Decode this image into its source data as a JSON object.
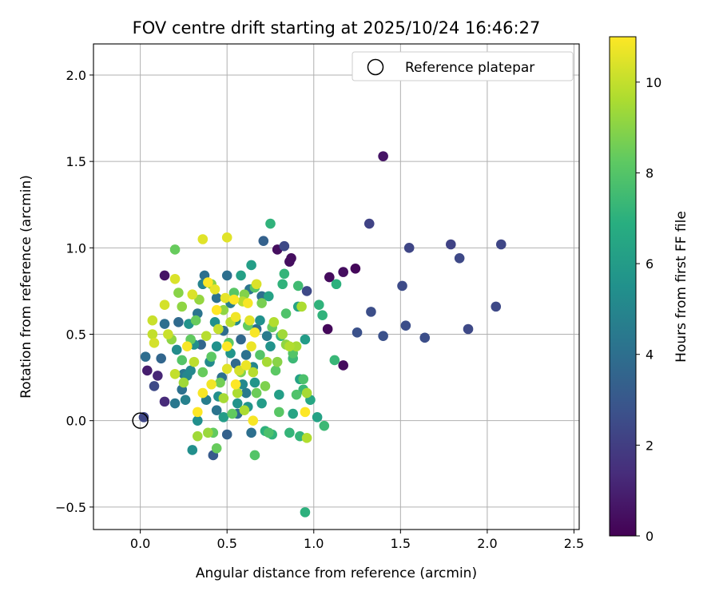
{
  "chart_data": {
    "type": "scatter",
    "title": "FOV centre drift starting at 2025/10/24 16:46:27",
    "xlabel": "Angular distance from reference (arcmin)",
    "ylabel": "Rotation from reference (arcmin)",
    "xlim": [
      -0.27,
      2.53
    ],
    "ylim": [
      -0.63,
      2.18
    ],
    "xticks": [
      0.0,
      0.5,
      1.0,
      1.5,
      2.0,
      2.5
    ],
    "xtick_labels": [
      "0.0",
      "0.5",
      "1.0",
      "1.5",
      "2.0",
      "2.5"
    ],
    "yticks": [
      -0.5,
      0.0,
      0.5,
      1.0,
      1.5,
      2.0
    ],
    "ytick_labels": [
      "−0.5",
      "0.0",
      "0.5",
      "1.0",
      "1.5",
      "2.0"
    ],
    "grid": true,
    "legend": {
      "label": "Reference platepar",
      "location": "top-right"
    },
    "reference_point": {
      "x": 0.0,
      "y": 0.0
    },
    "colorbar": {
      "label": "Hours from first FF file",
      "range": [
        0,
        11
      ],
      "ticks": [
        0,
        2,
        4,
        6,
        8,
        10
      ],
      "tick_labels": [
        "0",
        "2",
        "4",
        "6",
        "8",
        "10"
      ],
      "colormap": "viridis"
    },
    "points": [
      [
        1.4,
        1.53,
        0.6
      ],
      [
        0.86,
        0.92,
        0.4
      ],
      [
        0.87,
        0.94,
        0.4
      ],
      [
        1.09,
        0.83,
        0.3
      ],
      [
        1.17,
        0.86,
        0.4
      ],
      [
        1.24,
        0.88,
        0.2
      ],
      [
        1.08,
        0.53,
        0.2
      ],
      [
        1.17,
        0.32,
        0.3
      ],
      [
        0.79,
        0.99,
        0.4
      ],
      [
        0.14,
        0.84,
        0.6
      ],
      [
        0.04,
        0.29,
        0.9
      ],
      [
        0.1,
        0.26,
        1.2
      ],
      [
        0.14,
        0.11,
        1.3
      ],
      [
        0.08,
        0.2,
        2.4
      ],
      [
        0.02,
        0.02,
        2.3
      ],
      [
        1.32,
        1.14,
        2.2
      ],
      [
        1.55,
        1.0,
        2.3
      ],
      [
        1.79,
        1.02,
        2.2
      ],
      [
        1.84,
        0.94,
        2.4
      ],
      [
        2.08,
        1.02,
        2.3
      ],
      [
        1.51,
        0.78,
        2.5
      ],
      [
        1.33,
        0.63,
        2.6
      ],
      [
        1.53,
        0.55,
        2.6
      ],
      [
        1.64,
        0.48,
        2.6
      ],
      [
        1.89,
        0.53,
        2.4
      ],
      [
        2.05,
        0.66,
        2.4
      ],
      [
        1.4,
        0.49,
        2.7
      ],
      [
        1.25,
        0.51,
        2.7
      ],
      [
        0.96,
        0.75,
        2.4
      ],
      [
        0.83,
        1.01,
        2.4
      ],
      [
        0.71,
        1.04,
        3.4
      ],
      [
        0.3,
        -0.17,
        5.4
      ],
      [
        0.42,
        -0.2,
        3.1
      ],
      [
        0.5,
        -0.08,
        3.4
      ],
      [
        0.64,
        -0.07,
        4.0
      ],
      [
        0.56,
        0.04,
        3.9
      ],
      [
        0.38,
        0.12,
        4.6
      ],
      [
        0.29,
        0.29,
        5.1
      ],
      [
        0.25,
        0.27,
        4.4
      ],
      [
        0.22,
        0.57,
        3.8
      ],
      [
        0.14,
        0.56,
        4.0
      ],
      [
        0.33,
        0.62,
        4.2
      ],
      [
        0.48,
        0.52,
        3.9
      ],
      [
        0.61,
        0.38,
        4.1
      ],
      [
        0.58,
        0.47,
        3.7
      ],
      [
        0.67,
        0.53,
        4.0
      ],
      [
        0.73,
        0.49,
        4.5
      ],
      [
        0.55,
        0.33,
        3.8
      ],
      [
        0.35,
        0.44,
        3.6
      ],
      [
        0.26,
        0.12,
        4.8
      ],
      [
        0.44,
        0.06,
        4.2
      ],
      [
        0.61,
        0.16,
        4.5
      ],
      [
        0.2,
        0.1,
        4.4
      ],
      [
        0.24,
        0.18,
        4.1
      ],
      [
        0.12,
        0.36,
        3.6
      ],
      [
        0.03,
        0.37,
        3.9
      ],
      [
        0.47,
        0.25,
        4.0
      ],
      [
        0.52,
        0.68,
        4.6
      ],
      [
        0.36,
        0.79,
        4.9
      ],
      [
        0.44,
        0.71,
        4.1
      ],
      [
        0.63,
        0.76,
        4.3
      ],
      [
        0.7,
        0.72,
        4.0
      ],
      [
        0.5,
        0.84,
        4.0
      ],
      [
        0.37,
        0.84,
        4.0
      ],
      [
        0.27,
        0.26,
        5.0
      ],
      [
        0.4,
        0.34,
        5.2
      ],
      [
        0.45,
        0.14,
        5.4
      ],
      [
        0.33,
        0.0,
        5.4
      ],
      [
        0.59,
        0.21,
        5.1
      ],
      [
        0.65,
        0.31,
        5.0
      ],
      [
        0.75,
        0.43,
        5.6
      ],
      [
        0.69,
        0.58,
        5.5
      ],
      [
        0.55,
        0.58,
        5.2
      ],
      [
        0.43,
        0.57,
        5.5
      ],
      [
        0.31,
        0.44,
        5.4
      ],
      [
        0.21,
        0.41,
        5.3
      ],
      [
        0.28,
        0.56,
        5.6
      ],
      [
        0.44,
        0.43,
        5.5
      ],
      [
        0.52,
        0.39,
        5.7
      ],
      [
        0.66,
        0.22,
        5.7
      ],
      [
        0.56,
        0.1,
        5.6
      ],
      [
        0.7,
        0.1,
        6.0
      ],
      [
        0.62,
        0.08,
        5.7
      ],
      [
        0.48,
        0.02,
        6.0
      ],
      [
        0.64,
        0.9,
        6.1
      ],
      [
        0.74,
        0.72,
        6.3
      ],
      [
        0.58,
        0.84,
        6.2
      ],
      [
        0.92,
        0.24,
        6.3
      ],
      [
        0.8,
        0.15,
        6.1
      ],
      [
        0.88,
        0.04,
        6.4
      ],
      [
        1.02,
        0.02,
        6.3
      ],
      [
        0.98,
        0.12,
        6.5
      ],
      [
        0.95,
        0.47,
        6.0
      ],
      [
        0.91,
        0.66,
        6.4
      ],
      [
        0.75,
        1.14,
        7.1
      ],
      [
        0.95,
        -0.53,
        7.0
      ],
      [
        0.72,
        -0.06,
        7.0
      ],
      [
        0.76,
        -0.08,
        7.1
      ],
      [
        0.86,
        -0.07,
        7.2
      ],
      [
        0.92,
        -0.09,
        7.2
      ],
      [
        0.94,
        0.18,
        7.3
      ],
      [
        0.88,
        0.36,
        7.4
      ],
      [
        0.81,
        0.49,
        7.2
      ],
      [
        0.83,
        0.85,
        7.2
      ],
      [
        0.82,
        0.79,
        7.1
      ],
      [
        1.03,
        0.67,
        7.1
      ],
      [
        1.05,
        0.61,
        7.1
      ],
      [
        1.13,
        0.79,
        7.0
      ],
      [
        1.12,
        0.35,
        7.3
      ],
      [
        1.06,
        -0.03,
        7.4
      ],
      [
        0.91,
        0.78,
        7.5
      ],
      [
        0.2,
        0.99,
        8.4
      ],
      [
        0.42,
        -0.07,
        8.3
      ],
      [
        0.44,
        -0.16,
        8.4
      ],
      [
        0.53,
        0.04,
        8.3
      ],
      [
        0.66,
        -0.2,
        8.0
      ],
      [
        0.74,
        -0.07,
        7.8
      ],
      [
        0.8,
        0.05,
        8.1
      ],
      [
        0.9,
        0.15,
        7.9
      ],
      [
        0.94,
        0.24,
        7.8
      ],
      [
        0.78,
        0.29,
        8.2
      ],
      [
        0.69,
        0.38,
        8.0
      ],
      [
        0.62,
        0.55,
        8.3
      ],
      [
        0.54,
        0.74,
        8.1
      ],
      [
        0.66,
        0.77,
        8.0
      ],
      [
        0.84,
        0.62,
        7.9
      ],
      [
        0.88,
        0.39,
        8.0
      ],
      [
        0.76,
        0.54,
        8.4
      ],
      [
        0.51,
        0.45,
        8.2
      ],
      [
        0.36,
        0.28,
        8.4
      ],
      [
        0.24,
        0.35,
        8.0
      ],
      [
        0.29,
        0.47,
        8.3
      ],
      [
        0.32,
        0.58,
        8.4
      ],
      [
        0.41,
        0.37,
        8.2
      ],
      [
        0.46,
        0.22,
        8.6
      ],
      [
        0.58,
        0.28,
        8.8
      ],
      [
        0.67,
        0.16,
        8.5
      ],
      [
        0.72,
        0.2,
        8.8
      ],
      [
        0.79,
        0.34,
        9.0
      ],
      [
        0.84,
        0.44,
        9.1
      ],
      [
        0.7,
        0.68,
        8.7
      ],
      [
        0.6,
        0.73,
        8.9
      ],
      [
        0.48,
        0.64,
        9.1
      ],
      [
        0.41,
        0.79,
        9.0
      ],
      [
        0.34,
        0.7,
        9.2
      ],
      [
        0.24,
        0.66,
        9.1
      ],
      [
        0.22,
        0.74,
        9.0
      ],
      [
        0.18,
        0.47,
        9.1
      ],
      [
        0.25,
        0.22,
        9.4
      ],
      [
        0.33,
        -0.09,
        9.4
      ],
      [
        0.39,
        -0.07,
        9.3
      ],
      [
        0.48,
        0.13,
        9.5
      ],
      [
        0.56,
        0.16,
        9.6
      ],
      [
        0.6,
        0.06,
        9.6
      ],
      [
        0.65,
        0.28,
        9.8
      ],
      [
        0.73,
        0.34,
        9.5
      ],
      [
        0.77,
        0.57,
        9.7
      ],
      [
        0.82,
        0.5,
        9.4
      ],
      [
        0.86,
        0.43,
        9.7
      ],
      [
        0.9,
        0.43,
        9.5
      ],
      [
        0.93,
        0.66,
        9.6
      ],
      [
        0.96,
        -0.1,
        9.7
      ],
      [
        0.96,
        0.16,
        9.5
      ],
      [
        0.59,
        0.69,
        9.8
      ],
      [
        0.52,
        0.57,
        9.9
      ],
      [
        0.45,
        0.53,
        10.0
      ],
      [
        0.38,
        0.49,
        9.8
      ],
      [
        0.31,
        0.34,
        9.9
      ],
      [
        0.2,
        0.27,
        10.0
      ],
      [
        0.16,
        0.5,
        10.1
      ],
      [
        0.07,
        0.58,
        10.1
      ],
      [
        0.07,
        0.5,
        10.0
      ],
      [
        0.08,
        0.45,
        10.3
      ],
      [
        0.14,
        0.67,
        10.3
      ],
      [
        0.2,
        0.82,
        10.4
      ],
      [
        0.3,
        0.73,
        10.4
      ],
      [
        0.36,
        1.05,
        10.5
      ],
      [
        0.5,
        1.06,
        10.5
      ],
      [
        0.43,
        0.76,
        10.6
      ],
      [
        0.49,
        0.71,
        10.6
      ],
      [
        0.55,
        0.6,
        10.8
      ],
      [
        0.63,
        0.58,
        10.5
      ],
      [
        0.67,
        0.79,
        10.4
      ],
      [
        0.64,
        0.43,
        10.7
      ],
      [
        0.57,
        0.29,
        10.3
      ],
      [
        0.5,
        0.3,
        10.5
      ],
      [
        0.41,
        0.21,
        10.8
      ],
      [
        0.36,
        0.16,
        10.9
      ],
      [
        0.33,
        0.05,
        11.0
      ],
      [
        0.5,
        0.43,
        11.0
      ],
      [
        0.54,
        0.7,
        11.0
      ],
      [
        0.62,
        0.68,
        10.9
      ],
      [
        0.66,
        0.51,
        10.9
      ],
      [
        0.61,
        0.32,
        10.7
      ],
      [
        0.55,
        0.21,
        11.0
      ],
      [
        0.65,
        0.0,
        10.9
      ],
      [
        0.95,
        0.05,
        11.0
      ],
      [
        0.44,
        0.64,
        11.0
      ],
      [
        0.39,
        0.8,
        11.0
      ],
      [
        0.27,
        0.43,
        10.9
      ]
    ]
  }
}
